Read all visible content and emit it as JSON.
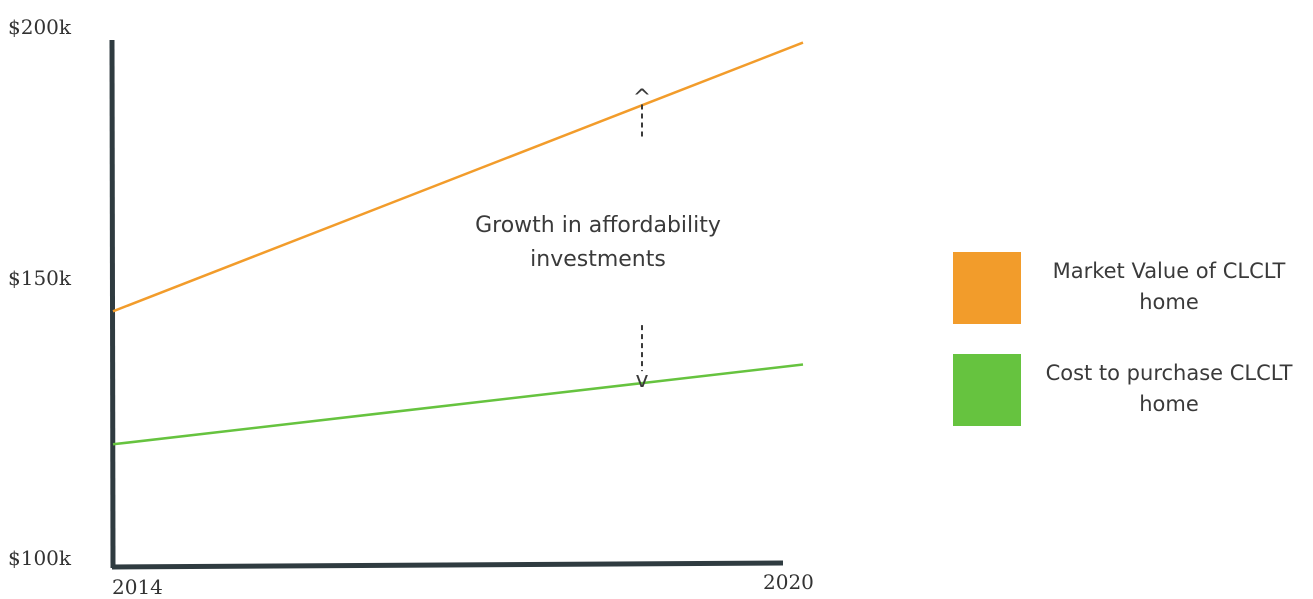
{
  "chart_data": {
    "type": "line",
    "x": [
      2014,
      2020
    ],
    "y_tick_labels": [
      "$200k",
      "$150k",
      "$100k"
    ],
    "x_tick_labels": [
      "2014",
      "2020"
    ],
    "ylim": [
      100000,
      200000
    ],
    "xlim": [
      2014,
      2020
    ],
    "grid": false,
    "legend_placement": "right",
    "series": [
      {
        "name": "Market Value of CLCLT home",
        "values": [
          147500,
          198000
        ],
        "color": "#f29c2b"
      },
      {
        "name": "Cost to purchase CLCLT home",
        "values": [
          122500,
          137500
        ],
        "color": "#66c33f"
      }
    ],
    "annotation": {
      "line1": "Growth in affordability",
      "line2": "investments",
      "arrow_up_glyph": "^",
      "arrow_down_glyph": "v",
      "x": 2018.6,
      "arrow_top": 189000,
      "arrow_bottom": 134000
    }
  },
  "legend": {
    "items": [
      {
        "line1": "Market Value of CLCLT",
        "line2": "home",
        "color": "#f29c2b"
      },
      {
        "line1": "Cost to purchase CLCLT",
        "line2": "home",
        "color": "#66c33f"
      }
    ]
  },
  "colors": {
    "axis": "#2f3b40",
    "text": "#3a3a3a"
  }
}
